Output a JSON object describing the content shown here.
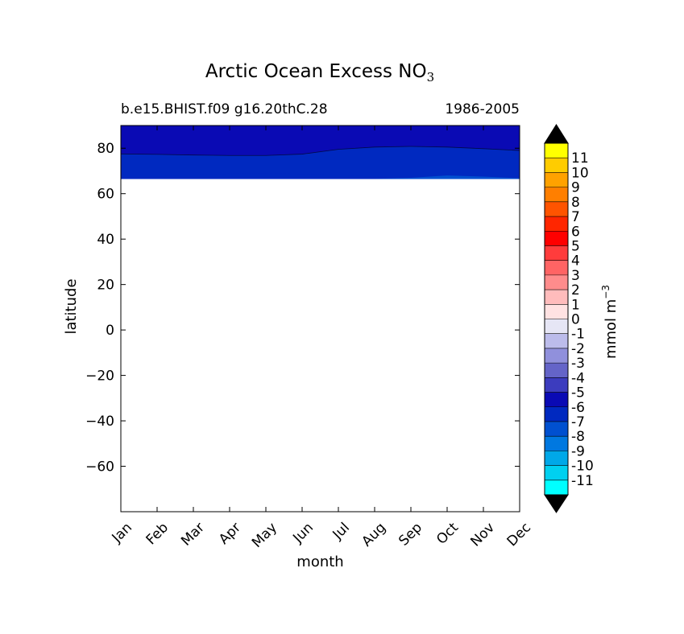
{
  "chart_data": {
    "type": "heatmap",
    "title": "Arctic Ocean Excess NO",
    "title_subscript": "3",
    "subtitle_left": "b.e15.BHIST.f09 g16.20thC.28",
    "subtitle_right": "1986-2005",
    "xlabel": "month",
    "ylabel": "latitude",
    "x_categories": [
      "Jan",
      "Feb",
      "Mar",
      "Apr",
      "May",
      "Jun",
      "Jul",
      "Aug",
      "Sep",
      "Oct",
      "Nov",
      "Dec"
    ],
    "ylim": [
      -80,
      90
    ],
    "y_ticks": [
      -60,
      -40,
      -20,
      0,
      20,
      40,
      60,
      80
    ],
    "y_tick_labels": [
      "−60",
      "−40",
      "−20",
      "0",
      "20",
      "40",
      "60",
      "80"
    ],
    "grid": false,
    "data_extent_lat": [
      66.5,
      90
    ],
    "contour_bands": [
      {
        "level": -6,
        "color": "#0a0ab4",
        "boundary": [
          [
            0,
            77.5
          ],
          [
            1,
            77.3
          ],
          [
            2,
            77.0
          ],
          [
            3,
            76.8
          ],
          [
            4,
            76.8
          ],
          [
            5,
            77.4
          ],
          [
            6,
            79.5
          ],
          [
            7,
            80.5
          ],
          [
            8,
            80.8
          ],
          [
            9,
            80.5
          ],
          [
            10,
            79.8
          ],
          [
            11,
            79.0
          ]
        ]
      },
      {
        "level": -7,
        "color": "#0029c0",
        "boundary": [
          [
            0,
            66.6
          ],
          [
            1,
            67.5
          ],
          [
            2,
            68.3
          ],
          [
            3,
            68.8
          ],
          [
            4,
            68.9
          ],
          [
            5,
            68.7
          ],
          [
            6,
            68.2
          ],
          [
            7,
            67.4
          ],
          [
            8,
            67.2
          ],
          [
            9,
            67.8
          ],
          [
            10,
            67.6
          ],
          [
            11,
            67.2
          ]
        ]
      },
      {
        "level": -8,
        "color": "#0050d0",
        "boundary": [
          [
            0,
            66.5
          ],
          [
            1,
            66.5
          ],
          [
            2,
            66.5
          ],
          [
            3,
            66.5
          ],
          [
            4,
            66.5
          ],
          [
            5,
            66.5
          ],
          [
            6,
            66.5
          ],
          [
            7,
            66.5
          ],
          [
            8,
            67.0
          ],
          [
            9,
            68.0
          ],
          [
            10,
            67.5
          ],
          [
            11,
            66.8
          ]
        ]
      }
    ],
    "colorbar": {
      "label": "mmol m",
      "label_superscript": "−3",
      "tick_labels": [
        "11",
        "10",
        "9",
        "8",
        "7",
        "6",
        "5",
        "4",
        "3",
        "2",
        "1",
        "0",
        "-1",
        "-2",
        "-3",
        "-4",
        "-5",
        "-6",
        "-7",
        "-8",
        "-9",
        "-10",
        "-11"
      ],
      "colors_top_to_bottom": [
        "#ffff00",
        "#ffcc00",
        "#ffa200",
        "#ff7f00",
        "#ff5400",
        "#ff2600",
        "#ff0000",
        "#ff3c3c",
        "#ff6464",
        "#ff8c8c",
        "#ffbcbc",
        "#ffe2e2",
        "#e6e6f5",
        "#bcbceb",
        "#9090dc",
        "#6464c8",
        "#3c3cbe",
        "#0a0ab4",
        "#0029c0",
        "#0050d0",
        "#0078e0",
        "#00a8e8",
        "#00d0f0",
        "#00ffff"
      ],
      "extend_max_color": "#000000",
      "extend_min_color": "#000000"
    }
  }
}
